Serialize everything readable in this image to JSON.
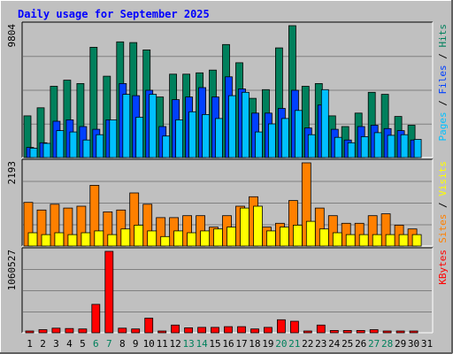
{
  "chart_data": [
    {
      "type": "bar",
      "title": "Daily usage for September 2025",
      "ymax_label": "9804",
      "ylim": [
        0,
        9804
      ],
      "right_labels": [
        {
          "text": "Pages",
          "color": "#00c0ff"
        },
        {
          "text": " / ",
          "color": "#000000"
        },
        {
          "text": "Files",
          "color": "#0040ff"
        },
        {
          "text": " / ",
          "color": "#000000"
        },
        {
          "text": "Hits",
          "color": "#00805c"
        }
      ],
      "categories": [
        "1",
        "2",
        "3",
        "4",
        "5",
        "6",
        "7",
        "8",
        "9",
        "10",
        "11",
        "12",
        "13",
        "14",
        "15",
        "16",
        "17",
        "18",
        "19",
        "20",
        "21",
        "22",
        "23",
        "24",
        "25",
        "26",
        "27",
        "28",
        "29",
        "30",
        "31"
      ],
      "series": [
        {
          "name": "Hits",
          "color": "#00805c",
          "values": [
            3100,
            3700,
            5300,
            5750,
            5500,
            8200,
            6050,
            8600,
            8550,
            8000,
            4500,
            6200,
            6200,
            6300,
            6500,
            8400,
            7050,
            4400,
            5050,
            8150,
            9804,
            5300,
            5500,
            3100,
            2300,
            3300,
            4850,
            4700,
            3050,
            2400,
            0
          ]
        },
        {
          "name": "Files",
          "color": "#0040ff",
          "values": [
            750,
            1100,
            2700,
            2800,
            2300,
            2100,
            2800,
            5500,
            4600,
            5000,
            2300,
            4300,
            4500,
            5200,
            4500,
            6000,
            5100,
            3300,
            3300,
            3650,
            5000,
            2200,
            3900,
            2100,
            1300,
            2300,
            2400,
            2150,
            2000,
            1300,
            0
          ]
        },
        {
          "name": "Pages",
          "color": "#00c0ff",
          "values": [
            700,
            1050,
            2000,
            1900,
            1300,
            1700,
            2800,
            4700,
            3000,
            4700,
            1600,
            2800,
            3400,
            3200,
            2900,
            4600,
            4850,
            1900,
            2500,
            2900,
            3500,
            1700,
            5050,
            1500,
            1100,
            1550,
            1850,
            1650,
            1700,
            1350,
            0
          ]
        }
      ]
    },
    {
      "type": "bar",
      "ymax_label": "2193",
      "ylim": [
        0,
        2193
      ],
      "right_labels": [
        {
          "text": "Sites",
          "color": "#ff8000"
        },
        {
          "text": " / ",
          "color": "#000000"
        },
        {
          "text": "Visits",
          "color": "#ffff00"
        }
      ],
      "categories": [
        "1",
        "2",
        "3",
        "4",
        "5",
        "6",
        "7",
        "8",
        "9",
        "10",
        "11",
        "12",
        "13",
        "14",
        "15",
        "16",
        "17",
        "18",
        "19",
        "20",
        "21",
        "22",
        "23",
        "24",
        "25",
        "26",
        "27",
        "28",
        "29",
        "30",
        "31"
      ],
      "series": [
        {
          "name": "Sites",
          "color": "#ff8000",
          "values": [
            1150,
            950,
            1100,
            1000,
            1050,
            1600,
            900,
            950,
            1400,
            1100,
            750,
            750,
            800,
            800,
            500,
            800,
            1050,
            1300,
            500,
            600,
            1200,
            2193,
            1000,
            800,
            600,
            600,
            800,
            850,
            550,
            450,
            0
          ]
        },
        {
          "name": "Visits",
          "color": "#ffff00",
          "values": [
            350,
            300,
            350,
            300,
            350,
            400,
            300,
            450,
            550,
            400,
            250,
            400,
            350,
            400,
            450,
            500,
            1000,
            1050,
            400,
            500,
            550,
            650,
            450,
            350,
            300,
            300,
            300,
            300,
            300,
            300,
            0
          ]
        }
      ]
    },
    {
      "type": "bar",
      "ymax_label": "1060527",
      "ylim": [
        0,
        1060527
      ],
      "right_labels": [
        {
          "text": "KBytes",
          "color": "#ff0000"
        }
      ],
      "categories": [
        "1",
        "2",
        "3",
        "4",
        "5",
        "6",
        "7",
        "8",
        "9",
        "10",
        "11",
        "12",
        "13",
        "14",
        "15",
        "16",
        "17",
        "18",
        "19",
        "20",
        "21",
        "22",
        "23",
        "24",
        "25",
        "26",
        "27",
        "28",
        "29",
        "30",
        "31"
      ],
      "series": [
        {
          "name": "KBytes",
          "color": "#ff0000",
          "values": [
            20000,
            40000,
            60000,
            55000,
            50000,
            370000,
            1060527,
            60000,
            50000,
            190000,
            20000,
            100000,
            65000,
            70000,
            70000,
            80000,
            80000,
            50000,
            70000,
            170000,
            150000,
            20000,
            100000,
            30000,
            30000,
            30000,
            40000,
            20000,
            20000,
            20000,
            0
          ]
        }
      ]
    }
  ],
  "day_colors": {
    "weekday": "#000000",
    "weekend": "#00805c"
  },
  "weekend_days": [
    6,
    7,
    13,
    14,
    20,
    21,
    27,
    28
  ],
  "colors": {
    "background": "#c0c0c0",
    "panel": "#c0c0c0",
    "grid": "#808080",
    "title": "#0000ff"
  }
}
